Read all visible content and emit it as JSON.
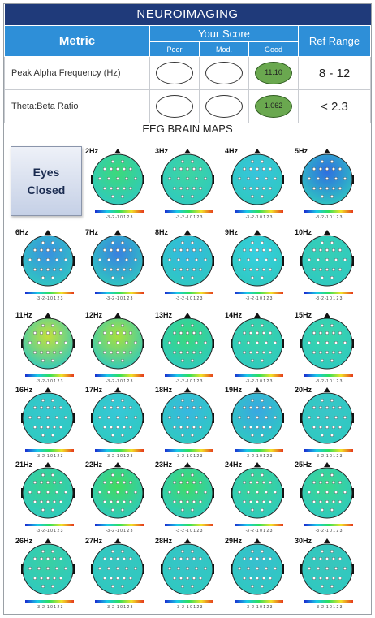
{
  "banner": "NEUROIMAGING",
  "header": {
    "metric": "Metric",
    "your_score": "Your Score",
    "poor": "Poor",
    "mod": "Mod.",
    "good": "Good",
    "ref_range": "Ref Range"
  },
  "rows": [
    {
      "label": "Peak Alpha Frequency (Hz)",
      "score_text": "11.10",
      "rating": "good",
      "ref": "8 - 12"
    },
    {
      "label": "Theta:Beta Ratio",
      "score_text": "1.062",
      "rating": "good",
      "ref": "< 2.3"
    }
  ],
  "maps_title": "EEG BRAIN MAPS",
  "condition_button": "Eyes Closed",
  "scale_ticks": "-3 -2 -1 0 1 2 3",
  "maps": [
    {
      "label": "2Hz",
      "color": "#3dd97a"
    },
    {
      "label": "3Hz",
      "color": "#3ed6a0"
    },
    {
      "label": "4Hz",
      "color": "#37c4dd"
    },
    {
      "label": "5Hz",
      "color": "#2f6fe0"
    },
    {
      "label": "6Hz",
      "color": "#3a8fe0"
    },
    {
      "label": "7Hz",
      "color": "#3a80e0"
    },
    {
      "label": "8Hz",
      "color": "#33b8e2"
    },
    {
      "label": "9Hz",
      "color": "#36cfe0"
    },
    {
      "label": "10Hz",
      "color": "#37d0b5"
    },
    {
      "label": "11Hz",
      "color": "#c4e03a"
    },
    {
      "label": "12Hz",
      "color": "#a8e03c"
    },
    {
      "label": "13Hz",
      "color": "#3ad97c"
    },
    {
      "label": "14Hz",
      "color": "#3ad4a4"
    },
    {
      "label": "15Hz",
      "color": "#3ad6a8"
    },
    {
      "label": "16Hz",
      "color": "#35c8cf"
    },
    {
      "label": "17Hz",
      "color": "#36c8d8"
    },
    {
      "label": "18Hz",
      "color": "#37b8e0"
    },
    {
      "label": "19Hz",
      "color": "#39a8e2"
    },
    {
      "label": "20Hz",
      "color": "#39c6c8"
    },
    {
      "label": "21Hz",
      "color": "#3ad48a"
    },
    {
      "label": "22Hz",
      "color": "#42db5f"
    },
    {
      "label": "23Hz",
      "color": "#3fdb68"
    },
    {
      "label": "24Hz",
      "color": "#3cd690"
    },
    {
      "label": "25Hz",
      "color": "#3cd88c"
    },
    {
      "label": "26Hz",
      "color": "#3ad0a2"
    },
    {
      "label": "27Hz",
      "color": "#37c6c0"
    },
    {
      "label": "28Hz",
      "color": "#37c4c8"
    },
    {
      "label": "29Hz",
      "color": "#38bfcf"
    },
    {
      "label": "30Hz",
      "color": "#39c6bc"
    }
  ]
}
